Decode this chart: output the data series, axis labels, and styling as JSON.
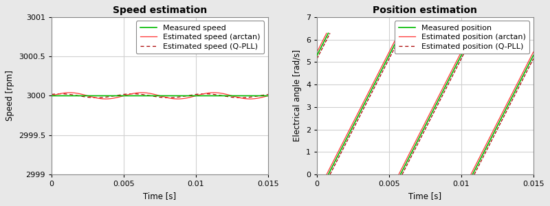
{
  "left_title": "Speed estimation",
  "right_title": "Position estimation",
  "left_xlabel": "Time [s]",
  "right_xlabel": "Time [s]",
  "left_ylabel": "Speed [rpm]",
  "right_ylabel": "Electrical angle [rad/s]",
  "left_ylim": [
    2999,
    3001
  ],
  "right_ylim": [
    0,
    7
  ],
  "left_xlim": [
    0,
    0.015
  ],
  "right_xlim": [
    0,
    0.015
  ],
  "left_yticks": [
    2999,
    2999.5,
    3000,
    3000.5,
    3001
  ],
  "right_yticks": [
    0,
    1,
    2,
    3,
    4,
    5,
    6,
    7
  ],
  "left_xticks": [
    0,
    0.005,
    0.01,
    0.015
  ],
  "right_xticks": [
    0,
    0.005,
    0.01,
    0.015
  ],
  "elec_freq": 200.0,
  "speed_rpm": 3000,
  "T": 0.015,
  "color_measured": "#00bb00",
  "color_arctan": "#ff3333",
  "color_qpll": "#aa0000",
  "left_legend": [
    "Measured speed",
    "Estimated speed (arctan)",
    "Estimated speed (Q-PLL)"
  ],
  "right_legend": [
    "Measured position",
    "Estimated position (arctan)",
    "Estimated position (Q-PLL)"
  ],
  "fig_facecolor": "#e8e8e8",
  "ax_facecolor": "#ffffff",
  "grid_color": "#d0d0d0",
  "title_fontsize": 10,
  "label_fontsize": 8.5,
  "tick_fontsize": 8,
  "legend_fontsize": 8
}
